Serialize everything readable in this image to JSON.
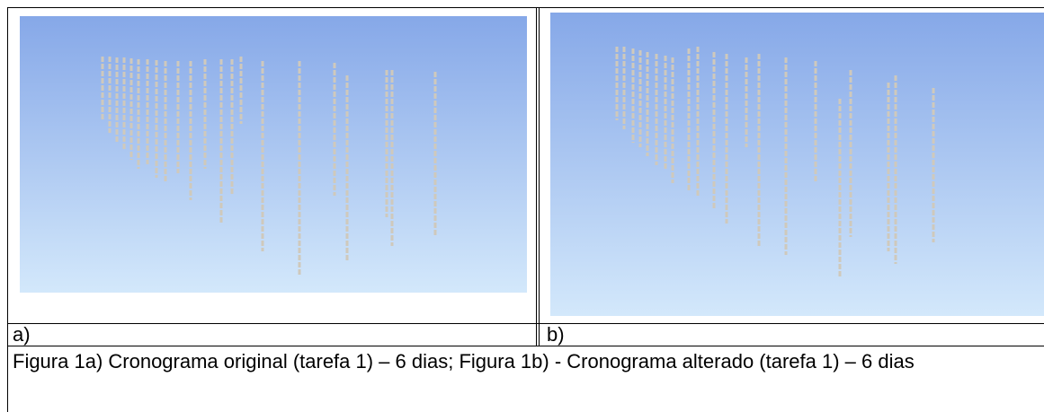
{
  "cells": [
    {
      "label": "a)"
    },
    {
      "label": "b)"
    }
  ],
  "caption": "Figura 1a) Cronograma original (tarefa 1) – 6 dias; Figura 1b) - Cronograma alterado (tarefa 1) – 6 dias"
}
